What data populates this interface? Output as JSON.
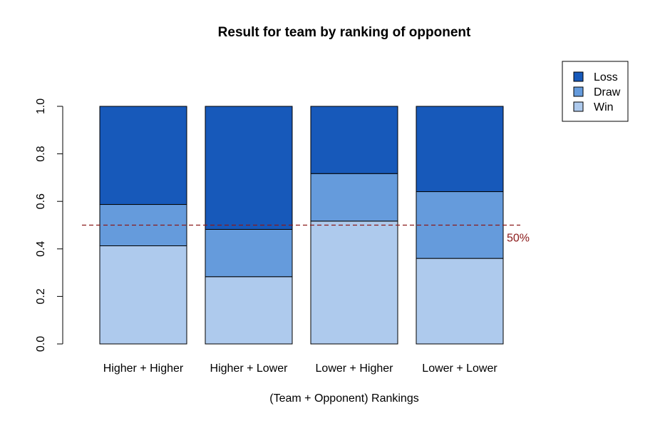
{
  "chart_data": {
    "type": "bar",
    "stacked": true,
    "title": "Result for team by ranking of opponent",
    "xlabel": "(Team + Opponent) Rankings",
    "ylabel": "",
    "ylim": [
      0,
      1
    ],
    "yticks": [
      "0.0",
      "0.2",
      "0.4",
      "0.6",
      "0.8",
      "1.0"
    ],
    "categories": [
      "Higher + Higher",
      "Higher + Lower",
      "Lower + Higher",
      "Lower + Lower"
    ],
    "series": [
      {
        "name": "Win",
        "color": "#aecaed",
        "values": [
          0.413,
          0.283,
          0.517,
          0.36
        ]
      },
      {
        "name": "Draw",
        "color": "#659bdc",
        "values": [
          0.174,
          0.199,
          0.2,
          0.281
        ]
      },
      {
        "name": "Loss",
        "color": "#1759ba",
        "values": [
          0.413,
          0.518,
          0.283,
          0.359
        ]
      }
    ],
    "legend": {
      "position": "top-right",
      "order": [
        "Loss",
        "Draw",
        "Win"
      ]
    },
    "reference_line": {
      "value": 0.5,
      "label": "50%",
      "color": "#8b1a1a",
      "style": "dashed"
    },
    "grid": false
  }
}
